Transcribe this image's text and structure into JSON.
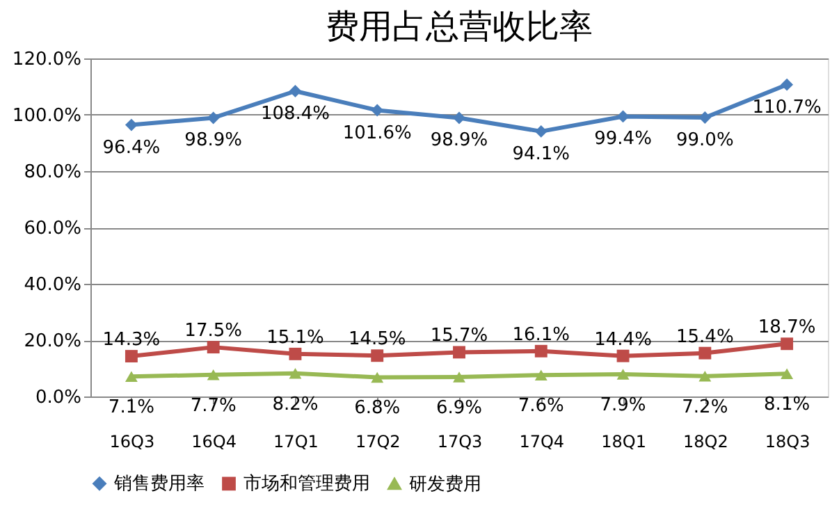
{
  "chart_data": {
    "type": "line",
    "title": "费用占总营收比率",
    "categories": [
      "16Q3",
      "16Q4",
      "17Q1",
      "17Q2",
      "17Q3",
      "17Q4",
      "18Q1",
      "18Q2",
      "18Q3"
    ],
    "series": [
      {
        "name": "销售费用率",
        "color": "#4a7ebb",
        "marker": "diamond",
        "values": [
          96.4,
          98.9,
          108.4,
          101.6,
          98.9,
          94.1,
          99.4,
          99.0,
          110.7
        ],
        "value_labels": [
          "96.4%",
          "98.9%",
          "108.4%",
          "101.6%",
          "98.9%",
          "94.1%",
          "99.4%",
          "99.0%",
          "110.7%"
        ]
      },
      {
        "name": "市场和管理费用",
        "color": "#be4b48",
        "marker": "square",
        "values": [
          14.3,
          17.5,
          15.1,
          14.5,
          15.7,
          16.1,
          14.4,
          15.4,
          18.7
        ],
        "value_labels": [
          "14.3%",
          "17.5%",
          "15.1%",
          "14.5%",
          "15.7%",
          "16.1%",
          "14.4%",
          "15.4%",
          "18.7%"
        ]
      },
      {
        "name": "研发费用",
        "color": "#98b954",
        "marker": "triangle",
        "values": [
          7.1,
          7.7,
          8.2,
          6.8,
          6.9,
          7.6,
          7.9,
          7.2,
          8.1
        ],
        "value_labels": [
          "7.1%",
          "7.7%",
          "8.2%",
          "6.8%",
          "6.9%",
          "7.6%",
          "7.9%",
          "7.2%",
          "8.1%"
        ]
      }
    ],
    "ylim": [
      0,
      120
    ],
    "yticks": [
      {
        "value": 0,
        "label": "0.0%"
      },
      {
        "value": 20,
        "label": "20.0%"
      },
      {
        "value": 40,
        "label": "40.0%"
      },
      {
        "value": 60,
        "label": "60.0%"
      },
      {
        "value": 80,
        "label": "80.0%"
      },
      {
        "value": 100,
        "label": "100.0%"
      },
      {
        "value": 120,
        "label": "120.0%"
      }
    ],
    "grid": "y",
    "legend": "bottom",
    "line_style": "solid"
  }
}
